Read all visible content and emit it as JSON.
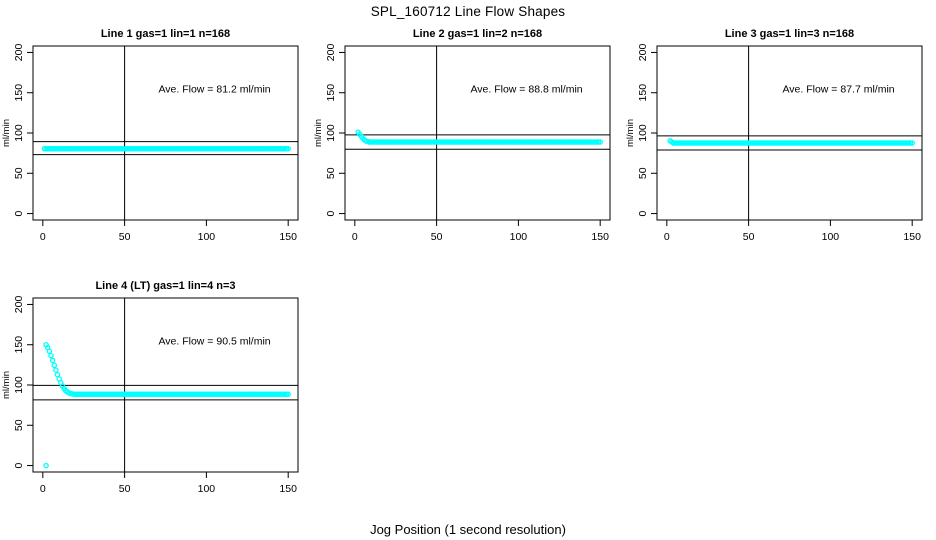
{
  "page": {
    "title": "SPL_160712  Line Flow Shapes",
    "xlabel": "Jog Position (1 second resolution)"
  },
  "colors": {
    "data_points": "#00ffff",
    "axis": "#000000",
    "background": "#ffffff"
  },
  "chart_data": [
    {
      "type": "scatter",
      "title": "Line 1 gas=1 lin=1 n=168",
      "annotation": "Ave. Flow =  81.2  ml/min",
      "ave_flow": 81.2,
      "ylabel": "ml/min",
      "x_ticks": [
        0,
        50,
        100,
        150
      ],
      "y_ticks": [
        0,
        50,
        100,
        150,
        200
      ],
      "xlim": [
        -6,
        156
      ],
      "ylim": [
        -8,
        208
      ],
      "vline_x": 50,
      "ref_lines": [
        89.3,
        73.1
      ],
      "grid": false,
      "series": [
        {
          "type": "flat",
          "x_from": 1,
          "x_to": 150,
          "y": 80.5
        }
      ]
    },
    {
      "type": "scatter",
      "title": "Line 2 gas=1 lin=2 n=168",
      "annotation": "Ave. Flow =  88.8  ml/min",
      "ave_flow": 88.8,
      "ylabel": "ml/min",
      "x_ticks": [
        0,
        50,
        100,
        150
      ],
      "y_ticks": [
        0,
        50,
        100,
        150,
        200
      ],
      "xlim": [
        -6,
        156
      ],
      "ylim": [
        -8,
        208
      ],
      "vline_x": 50,
      "ref_lines": [
        97.7,
        79.9
      ],
      "grid": false,
      "series": [
        {
          "type": "points",
          "data": [
            [
              2,
              101
            ],
            [
              3,
              98.5
            ],
            [
              4,
              95.5
            ],
            [
              5,
              93
            ],
            [
              6,
              91.2
            ],
            [
              7,
              90
            ],
            [
              8,
              89.3
            ]
          ]
        },
        {
          "type": "flat",
          "x_from": 9,
          "x_to": 150,
          "y": 88.8
        }
      ]
    },
    {
      "type": "scatter",
      "title": "Line 3 gas=1 lin=3 n=168",
      "annotation": "Ave. Flow =  87.7  ml/min",
      "ave_flow": 87.7,
      "ylabel": "ml/min",
      "x_ticks": [
        0,
        50,
        100,
        150
      ],
      "y_ticks": [
        0,
        50,
        100,
        150,
        200
      ],
      "xlim": [
        -6,
        156
      ],
      "ylim": [
        -8,
        208
      ],
      "vline_x": 50,
      "ref_lines": [
        96.5,
        78.9
      ],
      "grid": false,
      "series": [
        {
          "type": "points",
          "data": [
            [
              2,
              90.5
            ],
            [
              3,
              89
            ]
          ]
        },
        {
          "type": "flat",
          "x_from": 4,
          "x_to": 150,
          "y": 87.6
        }
      ]
    },
    {
      "type": "scatter",
      "title": "Line 4 (LT) gas=1 lin=4 n=3",
      "annotation": "Ave. Flow =  90.5  ml/min",
      "ave_flow": 90.5,
      "ylabel": "ml/min",
      "x_ticks": [
        0,
        50,
        100,
        150
      ],
      "y_ticks": [
        0,
        50,
        100,
        150,
        200
      ],
      "xlim": [
        -6,
        156
      ],
      "ylim": [
        -8,
        208
      ],
      "vline_x": 50,
      "ref_lines": [
        99.6,
        81.5
      ],
      "grid": false,
      "series": [
        {
          "type": "points",
          "data": [
            [
              2,
              0
            ]
          ]
        },
        {
          "type": "points",
          "data": [
            [
              2,
              150
            ],
            [
              3,
              146.5
            ],
            [
              4,
              142
            ],
            [
              5,
              136.5
            ],
            [
              6,
              130.5
            ],
            [
              7,
              124.5
            ],
            [
              8,
              118.5
            ],
            [
              9,
              112.8
            ],
            [
              10,
              107.5
            ],
            [
              11,
              102.8
            ],
            [
              12,
              98.8
            ],
            [
              13,
              95.6
            ],
            [
              14,
              93.2
            ],
            [
              15,
              91.4
            ],
            [
              16,
              90.2
            ],
            [
              17,
              89.4
            ],
            [
              18,
              88.9
            ],
            [
              19,
              88.6
            ]
          ]
        },
        {
          "type": "flat",
          "x_from": 20,
          "x_to": 150,
          "y": 88.4
        }
      ]
    }
  ]
}
